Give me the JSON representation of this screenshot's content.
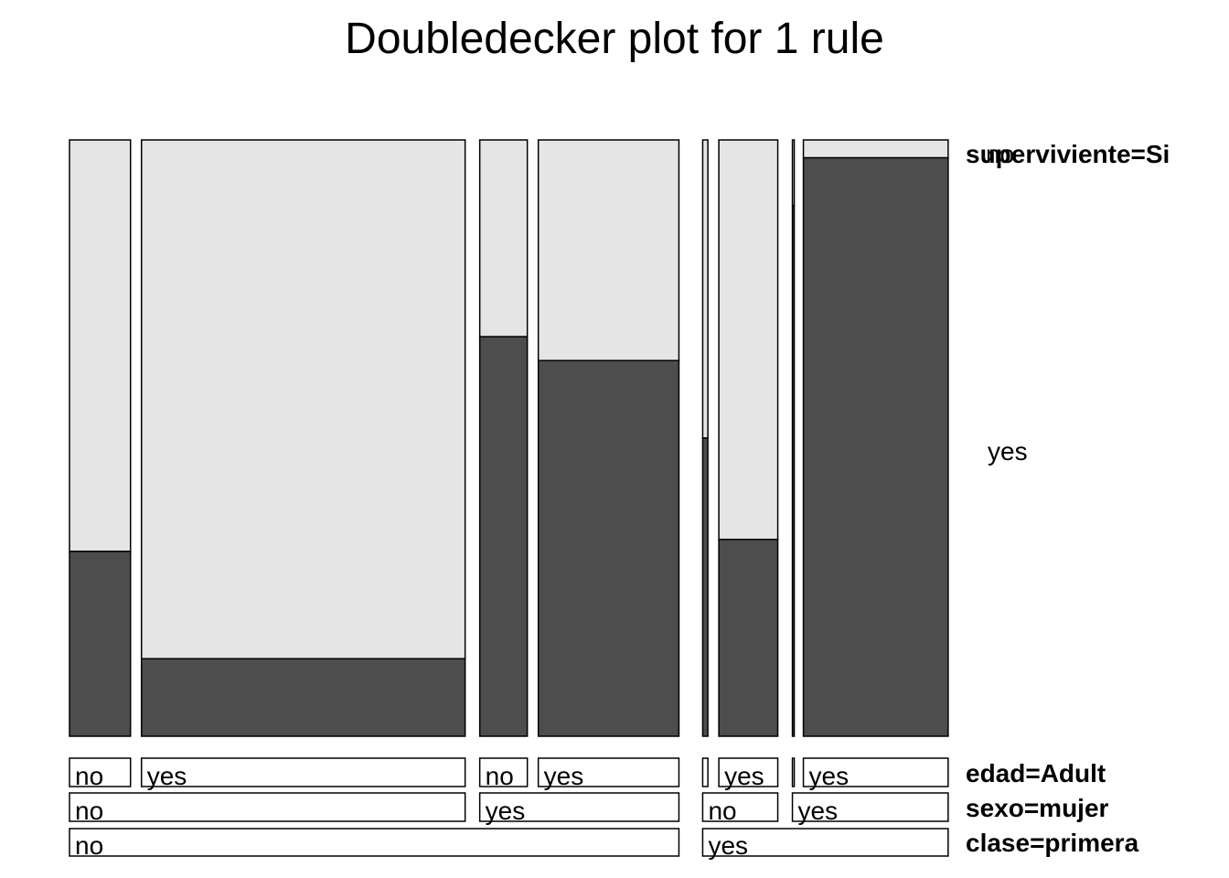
{
  "chart_data": {
    "type": "doubledecker",
    "title": "Doubledecker plot for 1 rule",
    "response": {
      "variable_label": "superviviente=Si",
      "levels": [
        "no",
        "yes"
      ],
      "colors": {
        "no": "#e5e5e5",
        "yes": "#4d4d4d"
      }
    },
    "factors": [
      {
        "label": "edad=Adult",
        "levels": [
          "no",
          "yes",
          "no",
          "yes",
          "",
          "yes",
          "",
          "yes"
        ]
      },
      {
        "label": "sexo=mujer",
        "levels": [
          "no",
          "yes",
          "no",
          "yes"
        ]
      },
      {
        "label": "clase=primera",
        "levels": [
          "no",
          "yes"
        ]
      }
    ],
    "cells": [
      {
        "clase": "no",
        "sexo": "no",
        "edad": "no",
        "count": 59,
        "yes_fraction": 0.31
      },
      {
        "clase": "no",
        "sexo": "no",
        "edad": "yes",
        "count": 313,
        "yes_fraction": 0.13
      },
      {
        "clase": "no",
        "sexo": "yes",
        "edad": "no",
        "count": 46,
        "yes_fraction": 0.67
      },
      {
        "clase": "no",
        "sexo": "yes",
        "edad": "yes",
        "count": 136,
        "yes_fraction": 0.63
      },
      {
        "clase": "yes",
        "sexo": "no",
        "edad": "no",
        "count": 5,
        "yes_fraction": 0.5
      },
      {
        "clase": "yes",
        "sexo": "no",
        "edad": "yes",
        "count": 57,
        "yes_fraction": 0.33
      },
      {
        "clase": "yes",
        "sexo": "yes",
        "edad": "no",
        "count": 1,
        "yes_fraction": 0.89
      },
      {
        "clase": "yes",
        "sexo": "yes",
        "edad": "yes",
        "count": 140,
        "yes_fraction": 0.97
      }
    ]
  }
}
